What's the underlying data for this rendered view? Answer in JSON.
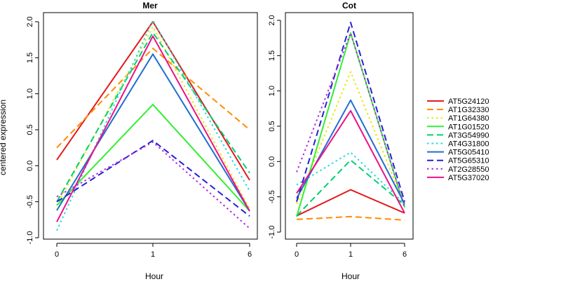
{
  "figure": {
    "ylabel": "centered expression",
    "legend_position": "right"
  },
  "series_styles": [
    {
      "name": "AT5G24120",
      "color": "#e31a1c",
      "dash": "solid"
    },
    {
      "name": "AT1G32330",
      "color": "#ff8c00",
      "dash": "dashed"
    },
    {
      "name": "AT1G64380",
      "color": "#e8e800",
      "dash": "dotted"
    },
    {
      "name": "AT1G01520",
      "color": "#33ee33",
      "dash": "solid"
    },
    {
      "name": "AT3G54990",
      "color": "#00d070",
      "dash": "dashed"
    },
    {
      "name": "AT4G31800",
      "color": "#22dddd",
      "dash": "dotted"
    },
    {
      "name": "AT5G05410",
      "color": "#1f6fd0",
      "dash": "solid"
    },
    {
      "name": "AT5G65310",
      "color": "#2a1fd6",
      "dash": "dashed"
    },
    {
      "name": "AT2G28550",
      "color": "#b02ee0",
      "dash": "dotted"
    },
    {
      "name": "AT5G37020",
      "color": "#ee1188",
      "dash": "solid"
    }
  ],
  "chart_data": [
    {
      "type": "line",
      "title": "Mer",
      "xlabel": "Hour",
      "ylabel": "centered expression",
      "x": [
        "0",
        "1",
        "6"
      ],
      "ylim": [
        -1.0,
        2.0
      ],
      "yticks": [
        "-1.0",
        "-0.5",
        "0.0",
        "0.5",
        "1.0",
        "1.5",
        "2.0"
      ],
      "grid": false,
      "series": [
        {
          "name": "AT5G24120",
          "values": [
            0.08,
            2.0,
            -0.2
          ]
        },
        {
          "name": "AT1G32330",
          "values": [
            0.25,
            1.63,
            0.5
          ]
        },
        {
          "name": "AT1G64380",
          "values": [
            -0.55,
            1.93,
            -0.6
          ]
        },
        {
          "name": "AT1G01520",
          "values": [
            -0.55,
            0.85,
            -0.63
          ]
        },
        {
          "name": "AT3G54990",
          "values": [
            -0.5,
            1.85,
            -0.1
          ]
        },
        {
          "name": "AT4G31800",
          "values": [
            -0.9,
            2.02,
            -0.35
          ]
        },
        {
          "name": "AT5G05410",
          "values": [
            -0.62,
            1.55,
            -0.63
          ]
        },
        {
          "name": "AT5G65310",
          "values": [
            -0.5,
            0.35,
            -0.7
          ]
        },
        {
          "name": "AT2G28550",
          "values": [
            -0.43,
            0.33,
            -0.87
          ]
        },
        {
          "name": "AT5G37020",
          "values": [
            -0.78,
            1.8,
            -0.63
          ]
        }
      ]
    },
    {
      "type": "line",
      "title": "Cot",
      "xlabel": "Hour",
      "x": [
        "0",
        "1",
        "6"
      ],
      "ylim": [
        -1.0,
        2.0
      ],
      "yticks": [
        "-1.0",
        "-0.5",
        "0.0",
        "0.5",
        "1.0",
        "1.5",
        "2.0"
      ],
      "grid": false,
      "series": [
        {
          "name": "AT5G24120",
          "values": [
            -0.77,
            -0.4,
            -0.73
          ]
        },
        {
          "name": "AT1G32330",
          "values": [
            -0.82,
            -0.78,
            -0.83
          ]
        },
        {
          "name": "AT1G64380",
          "values": [
            -0.6,
            1.27,
            -0.62
          ]
        },
        {
          "name": "AT1G01520",
          "values": [
            -0.78,
            1.82,
            -0.65
          ]
        },
        {
          "name": "AT3G54990",
          "values": [
            -0.77,
            0.02,
            -0.62
          ]
        },
        {
          "name": "AT4G31800",
          "values": [
            -0.33,
            0.13,
            -0.6
          ]
        },
        {
          "name": "AT5G05410",
          "values": [
            -0.52,
            0.87,
            -0.6
          ]
        },
        {
          "name": "AT5G65310",
          "values": [
            -0.57,
            1.97,
            -0.57
          ]
        },
        {
          "name": "AT2G28550",
          "values": [
            -0.15,
            1.82,
            -0.65
          ]
        },
        {
          "name": "AT5G37020",
          "values": [
            -0.45,
            0.72,
            -0.73
          ]
        }
      ]
    }
  ]
}
